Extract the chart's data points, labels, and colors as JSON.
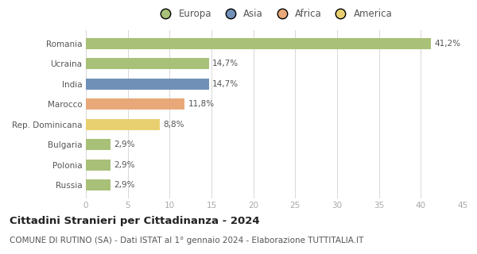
{
  "categories": [
    "Romania",
    "Ucraina",
    "India",
    "Marocco",
    "Rep. Dominicana",
    "Bulgaria",
    "Polonia",
    "Russia"
  ],
  "values": [
    41.2,
    14.7,
    14.7,
    11.8,
    8.8,
    2.9,
    2.9,
    2.9
  ],
  "labels": [
    "41,2%",
    "14,7%",
    "14,7%",
    "11,8%",
    "8,8%",
    "2,9%",
    "2,9%",
    "2,9%"
  ],
  "colors": [
    "#a8c078",
    "#a8c078",
    "#7090b8",
    "#e8a878",
    "#e8d070",
    "#a8c078",
    "#a8c078",
    "#a8c078"
  ],
  "legend": [
    {
      "label": "Europa",
      "color": "#a8c078"
    },
    {
      "label": "Asia",
      "color": "#7090b8"
    },
    {
      "label": "Africa",
      "color": "#e8a878"
    },
    {
      "label": "America",
      "color": "#e8d070"
    }
  ],
  "xlim": [
    0,
    45
  ],
  "xticks": [
    0,
    5,
    10,
    15,
    20,
    25,
    30,
    35,
    40,
    45
  ],
  "title": "Cittadini Stranieri per Cittadinanza - 2024",
  "subtitle": "COMUNE DI RUTINO (SA) - Dati ISTAT al 1° gennaio 2024 - Elaborazione TUTTITALIA.IT",
  "title_fontsize": 9.5,
  "subtitle_fontsize": 7.5,
  "label_fontsize": 7.5,
  "tick_fontsize": 7.5,
  "legend_fontsize": 8.5,
  "bar_height": 0.55,
  "background_color": "#ffffff",
  "grid_color": "#d8d8d8"
}
